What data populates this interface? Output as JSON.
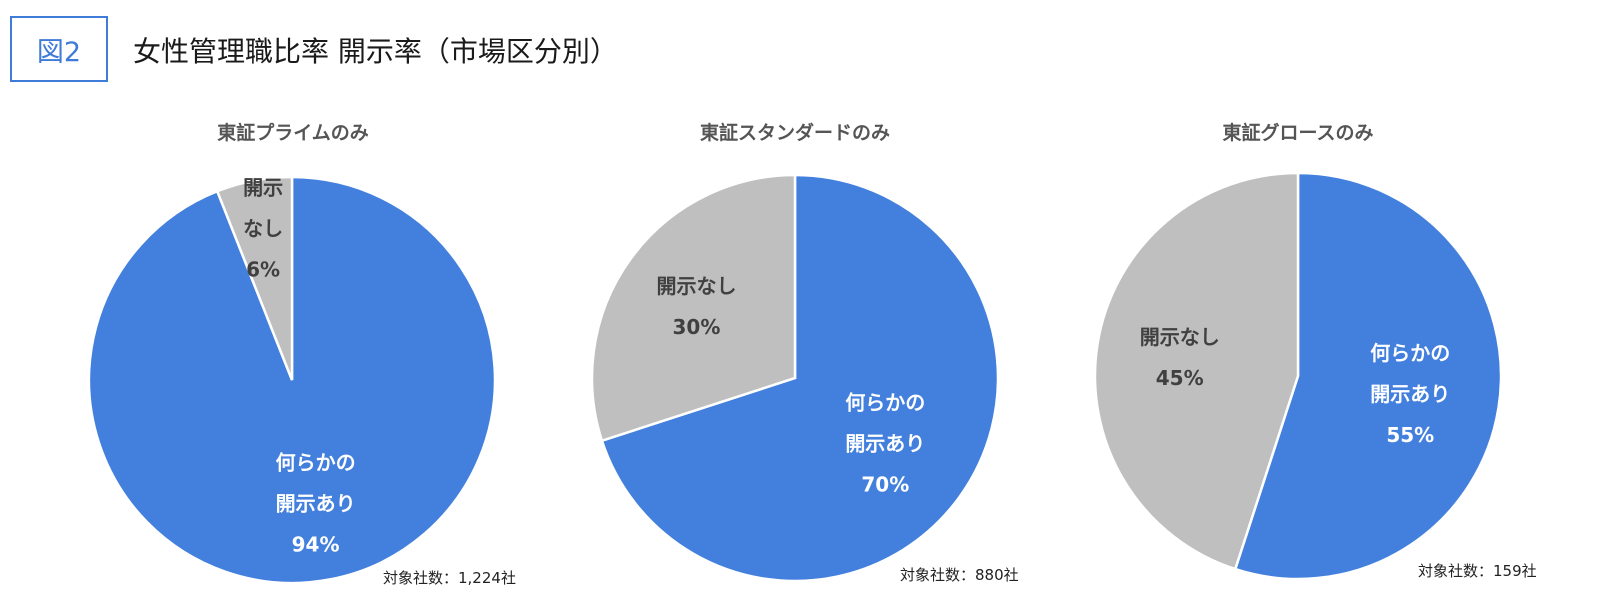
{
  "header": {
    "badge": "図2",
    "title": "女性管理職比率 開示率（市場区分別）"
  },
  "colors": {
    "disclosed": "#4380de",
    "not_disclosed": "#bfbfbf",
    "badge": "#3f7bd8"
  },
  "chart_data": [
    {
      "type": "pie",
      "title": "東証プライムのみ",
      "slices": [
        {
          "label_lines": [
            "何らかの",
            "開示あり",
            "94%"
          ],
          "value": 94,
          "color": "#4380de",
          "text_color": "#ffffff"
        },
        {
          "label_lines": [
            "開示",
            "なし",
            "6%"
          ],
          "value": 6,
          "color": "#bfbfbf",
          "text_color": "#404040"
        }
      ],
      "note": "対象社数：1,224社"
    },
    {
      "type": "pie",
      "title": "東証スタンダードのみ",
      "slices": [
        {
          "label_lines": [
            "何らかの",
            "開示あり",
            "70%"
          ],
          "value": 70,
          "color": "#4380de",
          "text_color": "#ffffff"
        },
        {
          "label_lines": [
            "開示なし",
            "30%"
          ],
          "value": 30,
          "color": "#bfbfbf",
          "text_color": "#404040"
        }
      ],
      "note": "対象社数：880社"
    },
    {
      "type": "pie",
      "title": "東証グロースのみ",
      "slices": [
        {
          "label_lines": [
            "何らかの",
            "開示あり",
            "55%"
          ],
          "value": 55,
          "color": "#4380de",
          "text_color": "#ffffff"
        },
        {
          "label_lines": [
            "開示なし",
            "45%"
          ],
          "value": 45,
          "color": "#bfbfbf",
          "text_color": "#404040"
        }
      ],
      "note": "対象社数：159社"
    }
  ]
}
